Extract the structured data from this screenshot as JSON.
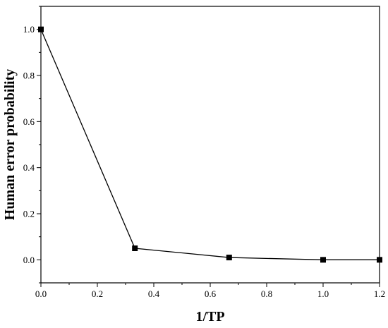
{
  "chart_data": {
    "type": "line",
    "title": "",
    "xlabel": "1/TP",
    "ylabel": "Human error probability",
    "xlim": [
      0.0,
      1.2
    ],
    "ylim": [
      -0.1,
      1.1
    ],
    "xticks": [
      "0.0",
      "0.2",
      "0.4",
      "0.6",
      "0.8",
      "1.0",
      "1.2"
    ],
    "yticks": [
      "0.0",
      "0.2",
      "0.4",
      "0.6",
      "0.8",
      "1.0"
    ],
    "grid": false,
    "marker": "square",
    "line_color": "#000000",
    "series": [
      {
        "x": [
          0.0,
          0.333,
          0.667,
          1.0,
          1.2
        ],
        "y": [
          1.0,
          0.05,
          0.01,
          0.0,
          0.0
        ]
      }
    ]
  }
}
